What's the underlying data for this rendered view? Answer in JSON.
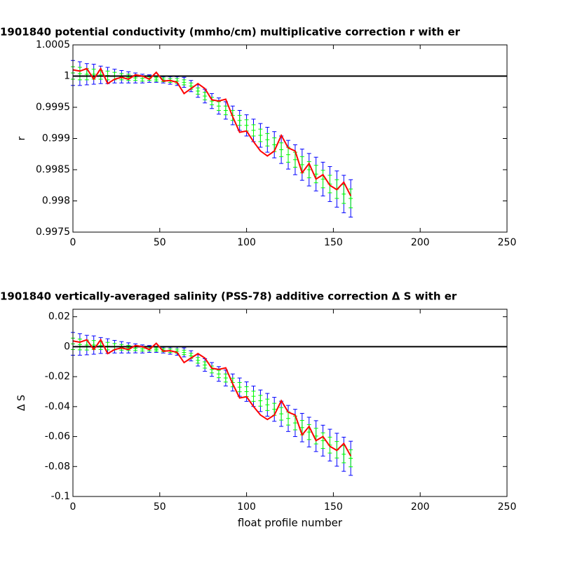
{
  "chart_data": [
    {
      "type": "errorbar",
      "title": "1901840 potential conductivity (mmho/cm) multiplicative correction r with er",
      "ylabel": "r",
      "x": [
        0,
        4,
        8,
        12,
        16,
        20,
        24,
        28,
        32,
        36,
        40,
        44,
        48,
        52,
        56,
        60,
        64,
        68,
        72,
        76,
        80,
        84,
        88,
        92,
        96,
        100,
        104,
        108,
        112,
        116,
        120,
        124,
        128,
        132,
        136,
        140,
        144,
        148,
        152,
        156,
        160
      ],
      "fit": [
        1.00005,
        1.00004,
        1.00003,
        1.00003,
        1.00002,
        1.00001,
        1.0,
        0.99999,
        0.99998,
        0.99997,
        0.99996,
        0.99996,
        0.99995,
        0.99994,
        0.99993,
        0.99992,
        0.9999,
        0.99984,
        0.99976,
        0.99968,
        0.9996,
        0.99952,
        0.99945,
        0.99937,
        0.99929,
        0.99921,
        0.99913,
        0.99905,
        0.99898,
        0.9989,
        0.99882,
        0.99874,
        0.99866,
        0.99858,
        0.9985,
        0.99843,
        0.99835,
        0.99827,
        0.99819,
        0.99811,
        0.99804
      ],
      "error_bars": [
        {
          "color": "#0000ff",
          "errors": [
            0.0002,
            0.00019,
            0.00017,
            0.00016,
            0.00014,
            0.00013,
            0.00011,
            0.0001,
            9e-05,
            8e-05,
            7e-05,
            6e-05,
            5e-05,
            5e-05,
            6e-05,
            7e-05,
            8e-05,
            9e-05,
            0.0001,
            0.00011,
            0.00012,
            0.00013,
            0.00014,
            0.00015,
            0.00016,
            0.00017,
            0.00018,
            0.00019,
            0.0002,
            0.00021,
            0.00022,
            0.00023,
            0.00024,
            0.00025,
            0.00026,
            0.00027,
            0.00027,
            0.00028,
            0.00029,
            0.0003,
            0.0003
          ]
        },
        {
          "color": "#00ff00",
          "errors": [
            0.0001,
            0.0001,
            9e-05,
            8e-05,
            7e-05,
            7e-05,
            6e-05,
            5e-05,
            5e-05,
            4e-05,
            4e-05,
            3e-05,
            3e-05,
            3e-05,
            3e-05,
            4e-05,
            4e-05,
            5e-05,
            5e-05,
            6e-05,
            6e-05,
            7e-05,
            7e-05,
            8e-05,
            8e-05,
            9e-05,
            9e-05,
            0.0001,
            0.0001,
            0.00011,
            0.00011,
            0.00012,
            0.00012,
            0.00013,
            0.00013,
            0.00014,
            0.00014,
            0.00014,
            0.00015,
            0.00015,
            0.00015
          ]
        }
      ],
      "line": {
        "color": "#ff0000",
        "values": [
          1.0001,
          1.00008,
          1.00012,
          0.99995,
          1.00012,
          0.99988,
          0.99995,
          0.99998,
          0.99995,
          1.00002,
          1.0,
          0.99995,
          1.00006,
          0.99992,
          0.99993,
          0.9999,
          0.99972,
          0.9998,
          0.99988,
          0.9998,
          0.99962,
          0.9996,
          0.99963,
          0.99935,
          0.9991,
          0.99912,
          0.99895,
          0.9988,
          0.99872,
          0.9988,
          0.99905,
          0.99885,
          0.9988,
          0.99845,
          0.9986,
          0.99835,
          0.99842,
          0.99825,
          0.99818,
          0.9983,
          0.99808
        ]
      },
      "reference": 1,
      "xlim": [
        0,
        250
      ],
      "xticks": [
        0,
        50,
        100,
        150,
        200,
        250
      ],
      "ylim": [
        0.9975,
        1.0005
      ],
      "yticks": [
        0.9975,
        0.998,
        0.9985,
        0.999,
        0.9995,
        1,
        1.0005
      ]
    },
    {
      "type": "errorbar",
      "title": "1901840 vertically-averaged salinity (PSS-78) additive correction Δ S with er",
      "ylabel": "Δ S",
      "xlabel": "float profile number",
      "x": [
        0,
        4,
        8,
        12,
        16,
        20,
        24,
        28,
        32,
        36,
        40,
        44,
        48,
        52,
        56,
        60,
        64,
        68,
        72,
        76,
        80,
        84,
        88,
        92,
        96,
        100,
        104,
        108,
        112,
        116,
        120,
        124,
        128,
        132,
        136,
        140,
        144,
        148,
        152,
        156,
        160
      ],
      "fit": [
        0.0019,
        0.0015,
        0.0011,
        0.0011,
        0.0008,
        0.0004,
        0,
        -0.0004,
        -0.0008,
        -0.0011,
        -0.0015,
        -0.0015,
        -0.0019,
        -0.0023,
        -0.0027,
        -0.003,
        -0.0038,
        -0.0061,
        -0.0091,
        -0.0122,
        -0.0152,
        -0.0182,
        -0.0209,
        -0.0239,
        -0.027,
        -0.03,
        -0.0331,
        -0.0361,
        -0.0388,
        -0.0418,
        -0.0448,
        -0.0479,
        -0.0509,
        -0.054,
        -0.057,
        -0.0597,
        -0.0627,
        -0.0657,
        -0.0688,
        -0.0718,
        -0.0745
      ],
      "error_bars": [
        {
          "color": "#0000ff",
          "errors": [
            0.0076,
            0.0072,
            0.0065,
            0.0061,
            0.0053,
            0.0049,
            0.0042,
            0.0038,
            0.0034,
            0.003,
            0.0027,
            0.0023,
            0.0019,
            0.0019,
            0.0023,
            0.0027,
            0.003,
            0.0034,
            0.0038,
            0.0042,
            0.0046,
            0.0049,
            0.0053,
            0.0057,
            0.0061,
            0.0065,
            0.0068,
            0.0072,
            0.0076,
            0.008,
            0.0084,
            0.0087,
            0.0091,
            0.0095,
            0.0099,
            0.0103,
            0.0103,
            0.0106,
            0.011,
            0.0114,
            0.0114
          ]
        },
        {
          "color": "#00ff00",
          "errors": [
            0.0038,
            0.0036,
            0.0033,
            0.003,
            0.0027,
            0.0025,
            0.0021,
            0.0019,
            0.0017,
            0.0015,
            0.0014,
            0.0012,
            0.001,
            0.001,
            0.0012,
            0.0014,
            0.0015,
            0.0017,
            0.0019,
            0.0021,
            0.0023,
            0.0025,
            0.0027,
            0.0029,
            0.0031,
            0.0033,
            0.0034,
            0.0036,
            0.0038,
            0.004,
            0.0042,
            0.0044,
            0.0046,
            0.0048,
            0.005,
            0.0052,
            0.0052,
            0.0053,
            0.0055,
            0.0057,
            0.0057
          ]
        }
      ],
      "line": {
        "color": "#ff0000",
        "values": [
          0.0038,
          0.003,
          0.0046,
          -0.0019,
          0.0046,
          -0.0046,
          -0.0019,
          -0.0008,
          -0.0019,
          0.0008,
          0,
          -0.0019,
          0.0023,
          -0.003,
          -0.0027,
          -0.0038,
          -0.0106,
          -0.0076,
          -0.0046,
          -0.0076,
          -0.0144,
          -0.0152,
          -0.0141,
          -0.0247,
          -0.0342,
          -0.0334,
          -0.0399,
          -0.0456,
          -0.0486,
          -0.0456,
          -0.0361,
          -0.0437,
          -0.0456,
          -0.0589,
          -0.0532,
          -0.0627,
          -0.06,
          -0.0665,
          -0.0692,
          -0.0646,
          -0.073
        ]
      },
      "reference": 0,
      "xlim": [
        0,
        250
      ],
      "xticks": [
        0,
        50,
        100,
        150,
        200,
        250
      ],
      "ylim": [
        -0.1,
        0.025
      ],
      "yticks": [
        -0.1,
        -0.08,
        -0.06,
        -0.04,
        -0.02,
        0,
        0.02
      ]
    }
  ]
}
